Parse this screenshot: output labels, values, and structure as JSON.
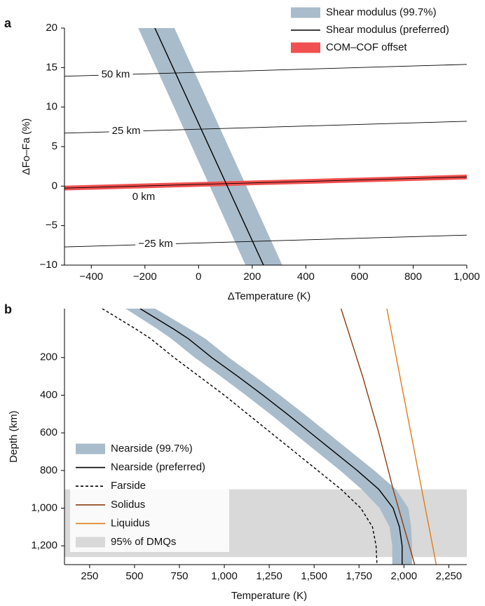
{
  "chart_data": [
    {
      "type": "line",
      "panel_label": "a",
      "xlabel": "ΔTemperature (K)",
      "ylabel": "ΔFo–Fa (%)",
      "xlim": [
        -500,
        1000
      ],
      "ylim": [
        -10,
        20
      ],
      "xticks": [
        {
          "value": -400,
          "label": "−400"
        },
        {
          "value": -200,
          "label": "−200"
        },
        0,
        200,
        400,
        600,
        800,
        {
          "value": 1000,
          "label": "1,000"
        }
      ],
      "yticks": [
        {
          "value": -10,
          "label": "−10"
        },
        {
          "value": -5,
          "label": "−5"
        },
        0,
        5,
        10,
        15,
        20
      ],
      "series": [
        {
          "name": "Shear modulus (99.7%)",
          "color": "#a9bccb",
          "y": [
            20,
            -10
          ],
          "x_low": [
            -225,
            175
          ],
          "x_high": [
            -90,
            312
          ]
        },
        {
          "name": "Shear modulus (preferred)",
          "color": "#000000",
          "x": [
            -163,
            242
          ],
          "y": [
            20,
            -10
          ]
        },
        {
          "name": "COM–COF offset",
          "color": "#f0504f",
          "x": [
            -500,
            1000
          ],
          "y_low": [
            -0.55,
            0.85
          ],
          "y_high": [
            0.05,
            1.45
          ]
        }
      ],
      "contours": [
        {
          "label": "50 km",
          "x": [
            -500,
            1000
          ],
          "y": [
            13.9,
            15.4
          ]
        },
        {
          "label": "25 km",
          "x": [
            -500,
            1000
          ],
          "y": [
            6.7,
            8.2
          ]
        },
        {
          "label": "0 km",
          "x": [
            -500,
            1000
          ],
          "y": [
            -0.25,
            1.15
          ]
        },
        {
          "label": "−25 km",
          "x": [
            -500,
            1000
          ],
          "y": [
            -7.7,
            -6.2
          ]
        }
      ]
    },
    {
      "type": "line",
      "panel_label": "b",
      "xlabel": "Temperature (K)",
      "ylabel": "Depth (km)",
      "xlim": [
        110,
        2350
      ],
      "ylim": [
        1300,
        -60
      ],
      "xticks": [
        250,
        500,
        750,
        {
          "value": 1000,
          "label": "1,000"
        },
        {
          "value": 1250,
          "label": "1,250"
        },
        {
          "value": 1500,
          "label": "1,500"
        },
        {
          "value": 1750,
          "label": "1,750"
        },
        {
          "value": 2000,
          "label": "2,000"
        },
        {
          "value": 2250,
          "label": "2,250"
        }
      ],
      "yticks": [
        200,
        400,
        600,
        800,
        {
          "value": 1000,
          "label": "1,000"
        },
        {
          "value": 1200,
          "label": "1,200"
        }
      ],
      "series": [
        {
          "name": "Nearside (99.7%)",
          "color": "#a9bccb",
          "y": [
            -60,
            50,
            100,
            200,
            300,
            400,
            500,
            600,
            700,
            800,
            900,
            1000,
            1100,
            1200,
            1300
          ],
          "x_low": [
            450,
            630,
            705,
            835,
            980,
            1120,
            1255,
            1385,
            1515,
            1645,
            1765,
            1865,
            1920,
            1935,
            1935
          ],
          "x_high": [
            615,
            810,
            895,
            1025,
            1170,
            1310,
            1445,
            1575,
            1705,
            1835,
            1955,
            2025,
            2040,
            2045,
            2045
          ]
        },
        {
          "name": "Nearside (preferred)",
          "color": "#000000",
          "y": [
            -60,
            50,
            100,
            200,
            300,
            400,
            500,
            600,
            700,
            800,
            900,
            1000,
            1100,
            1200,
            1300
          ],
          "x": [
            531,
            720,
            800,
            930,
            1075,
            1215,
            1350,
            1480,
            1610,
            1740,
            1860,
            1940,
            1975,
            1990,
            1990
          ]
        },
        {
          "name": "Farside",
          "color": "#000000",
          "linestyle": "dashed",
          "y": [
            -60,
            50,
            100,
            200,
            300,
            400,
            500,
            600,
            700,
            800,
            900,
            1000,
            1100,
            1200,
            1300
          ],
          "x": [
            320,
            510,
            590,
            720,
            860,
            1000,
            1130,
            1260,
            1390,
            1520,
            1650,
            1760,
            1825,
            1845,
            1850
          ]
        },
        {
          "name": "Solidus",
          "color": "#8b3d0f",
          "y": [
            -60,
            300,
            600,
            900,
            1300
          ],
          "x": [
            1650,
            1770,
            1860,
            1940,
            2060
          ]
        },
        {
          "name": "Liquidus",
          "color": "#e07b1a",
          "y": [
            -60,
            1300
          ],
          "x": [
            1905,
            2180
          ]
        },
        {
          "name": "95% of DMQs",
          "color": "#d9d9d9",
          "y_span": [
            900,
            1260
          ]
        }
      ]
    }
  ]
}
